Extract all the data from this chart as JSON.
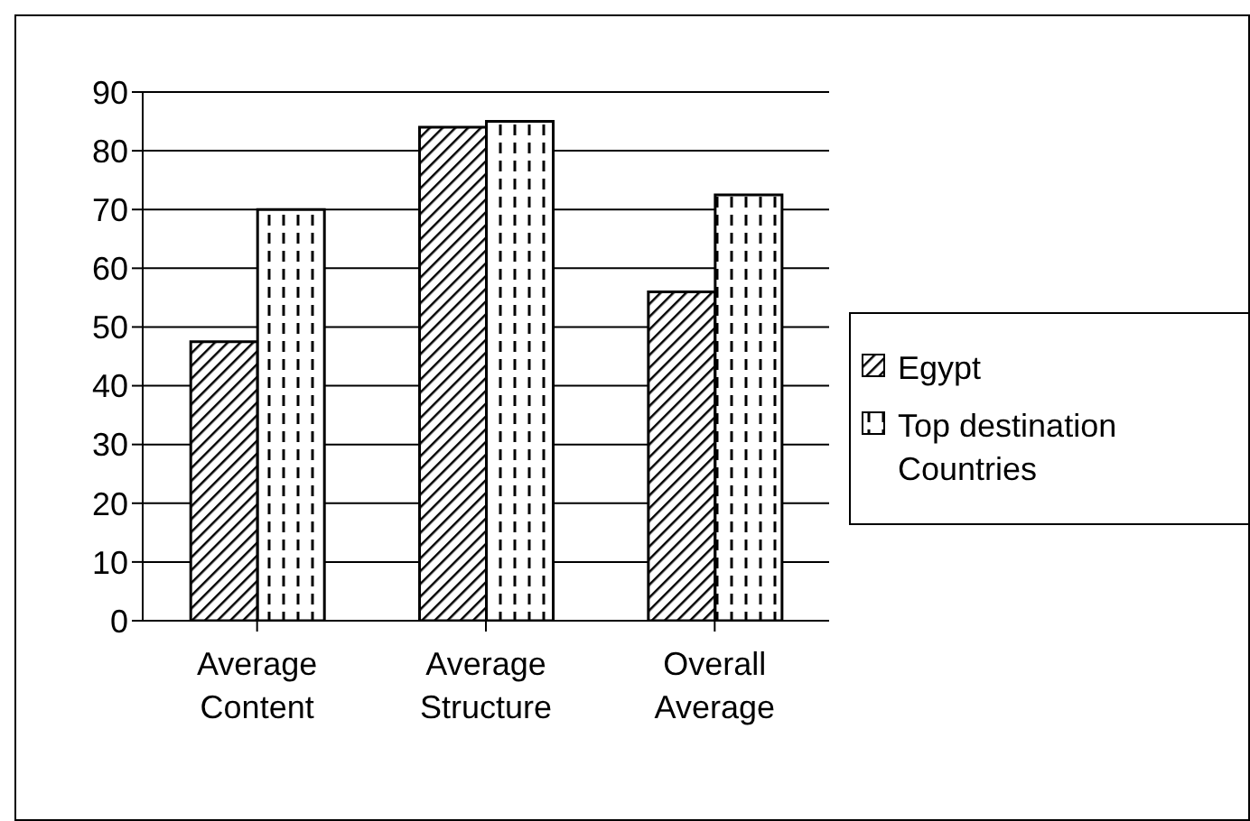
{
  "chart_data": {
    "type": "bar",
    "categories": [
      "Average Content",
      "Average Structure",
      "Overall Average"
    ],
    "series": [
      {
        "name": "Egypt",
        "color": "#000000",
        "values": [
          47.5,
          84,
          56
        ]
      },
      {
        "name": "Top destination Countries",
        "color": "#000000",
        "values": [
          70,
          85,
          72.5
        ]
      }
    ],
    "ylim": [
      0,
      90
    ],
    "yticks": [
      0,
      10,
      20,
      30,
      40,
      50,
      60,
      70,
      80,
      90
    ],
    "grid": "y",
    "legend": "right"
  }
}
